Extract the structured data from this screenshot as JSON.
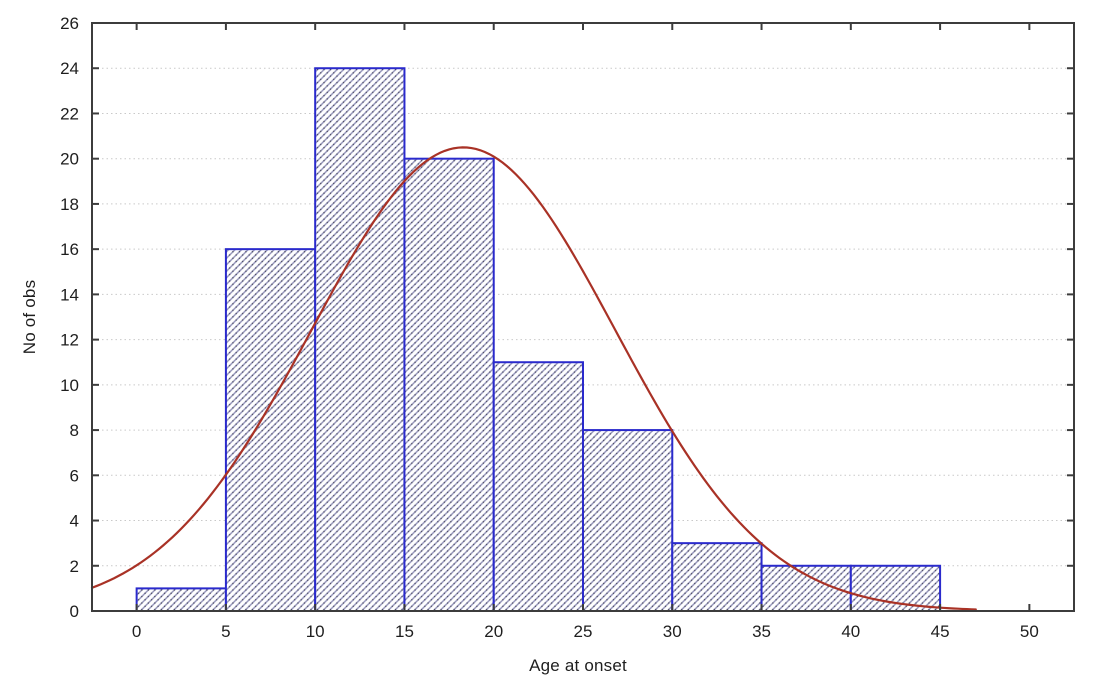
{
  "chart_data": {
    "type": "bar",
    "subtype": "histogram-with-normal-fit",
    "title": "",
    "xlabel": "Age at onset",
    "ylabel": "No of obs",
    "bin_width": 5,
    "bin_starts": [
      0,
      5,
      10,
      15,
      20,
      25,
      30,
      35,
      40
    ],
    "values": [
      1,
      16,
      24,
      20,
      11,
      8,
      3,
      2,
      2
    ],
    "xlim": [
      -2.5,
      52.5
    ],
    "ylim": [
      0,
      26
    ],
    "x_ticks": [
      0,
      5,
      10,
      15,
      20,
      25,
      30,
      35,
      40,
      45,
      50
    ],
    "y_ticks": [
      0,
      2,
      4,
      6,
      8,
      10,
      12,
      14,
      16,
      18,
      20,
      22,
      24,
      26
    ],
    "grid": {
      "horizontal": true,
      "vertical": false,
      "style": "dotted"
    },
    "curve": {
      "type": "normal",
      "mean": 18.3,
      "sd": 8.5,
      "peak": 20.5,
      "x_start": -2.5,
      "x_end": 47
    },
    "legend": null,
    "colors": {
      "background": "#ffffff",
      "bar_edge": "#2a2acc",
      "bar_hatch": "#9090b8",
      "bar_hatch_speckle": "#3a3a4a",
      "curve": "#a93226",
      "frame": "#3c3c3c",
      "grid": "#c9c9c9",
      "text": "#1e1e1e"
    }
  }
}
